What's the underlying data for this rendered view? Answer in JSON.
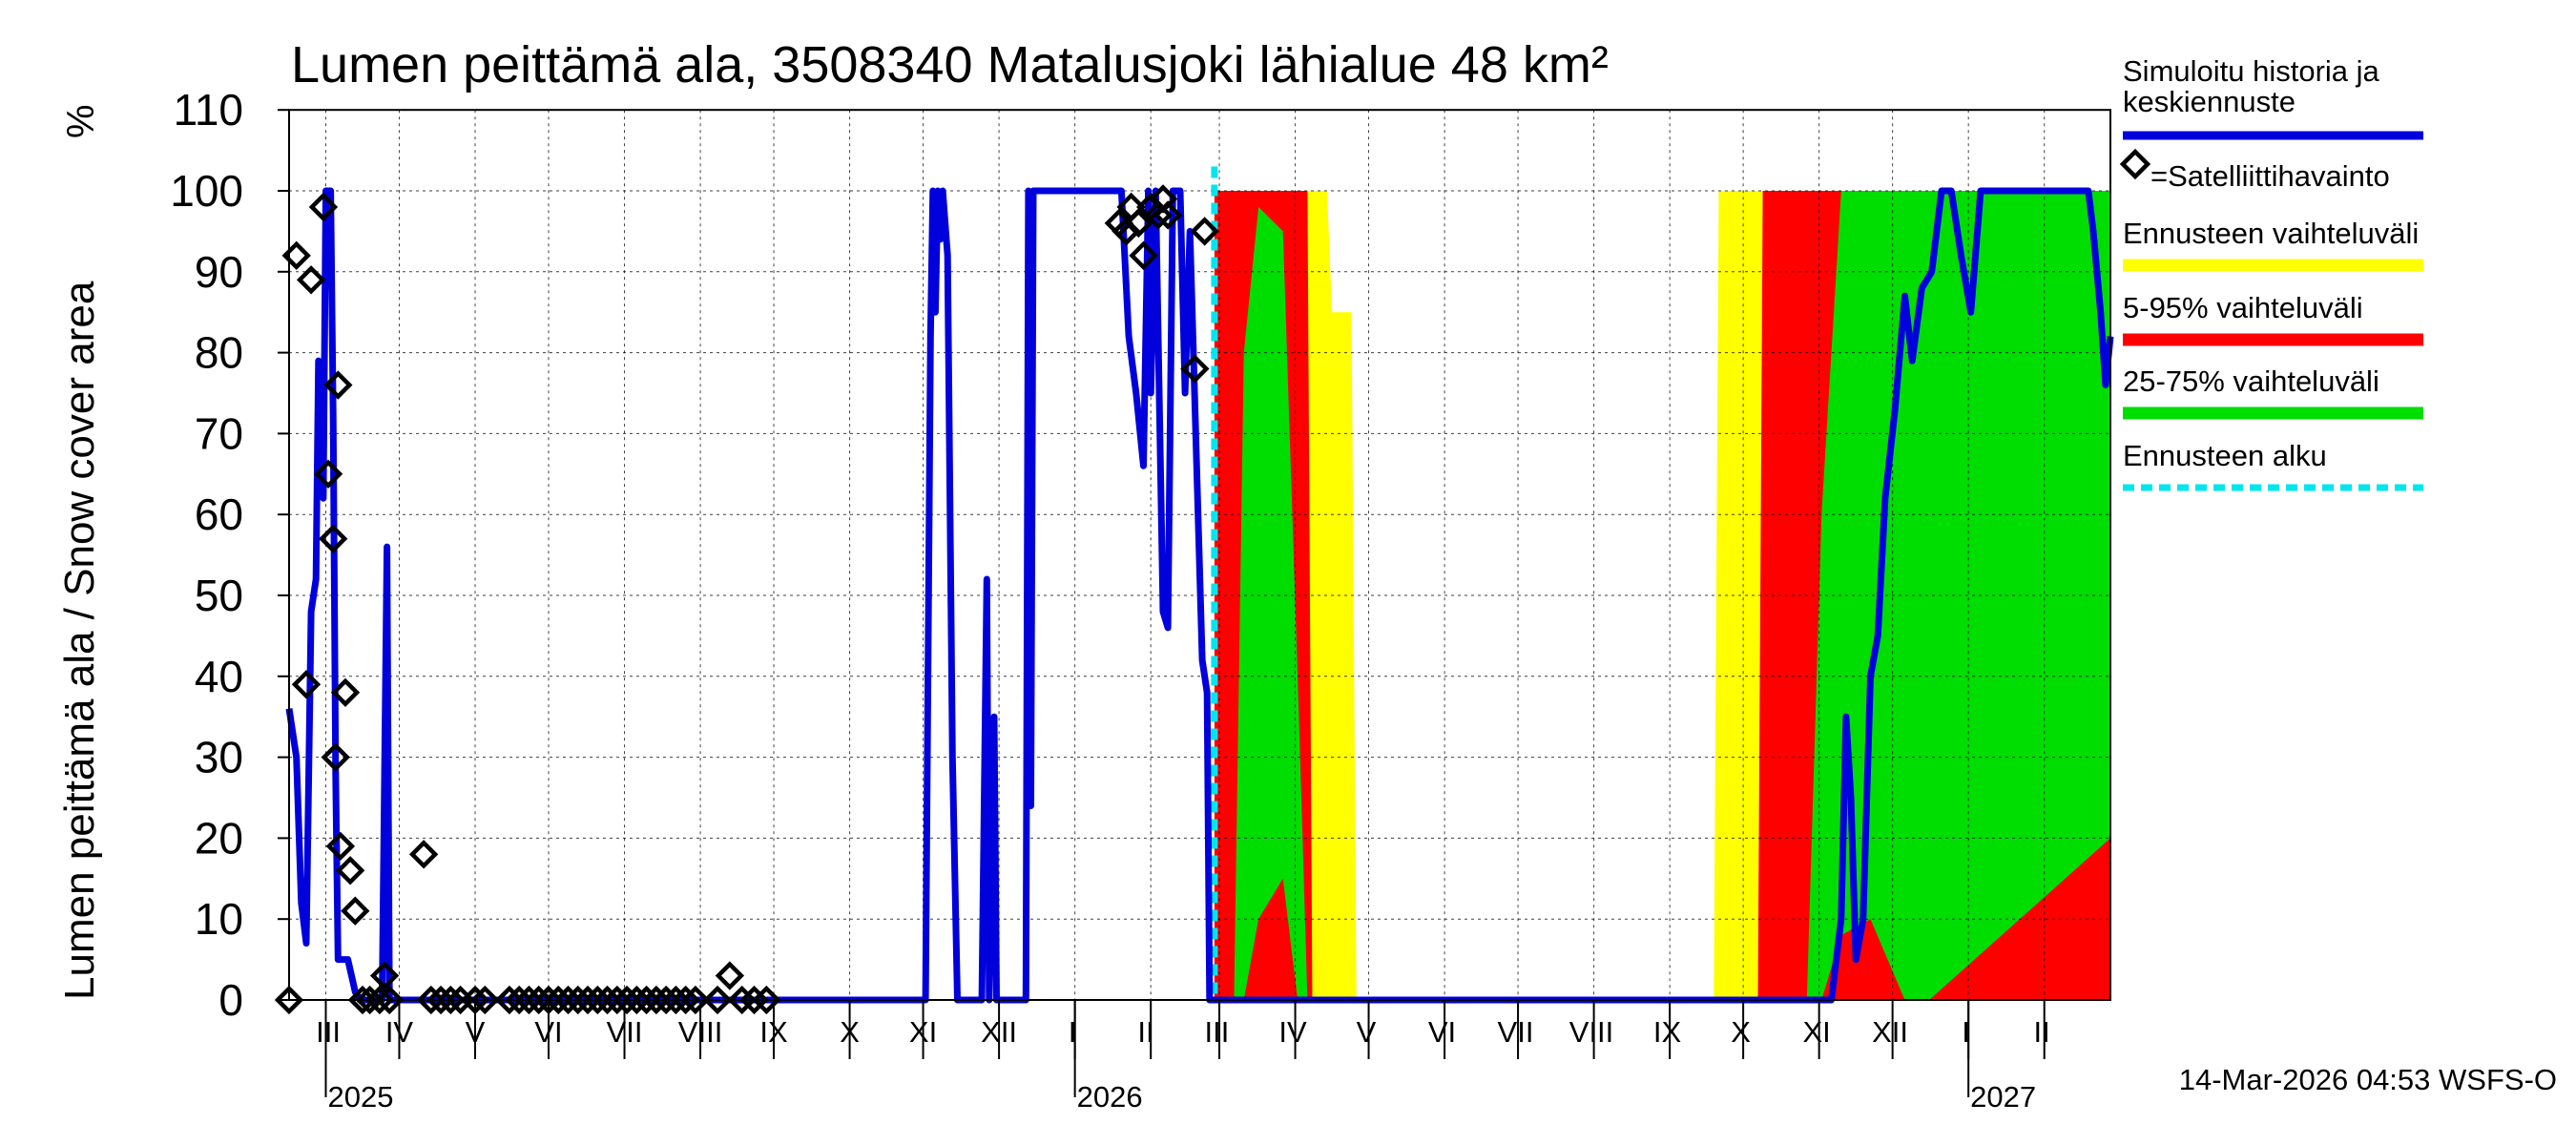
{
  "chart_data": {
    "type": "area",
    "title": "Lumen peittämä ala, 3508340 Matalusjoki lähialue 48 km²",
    "ylabel": "Lumen peittämä ala / Snow cover area",
    "yunit": "%",
    "ylim": [
      0,
      110
    ],
    "yticks": [
      0,
      10,
      20,
      30,
      40,
      50,
      60,
      70,
      80,
      90,
      100,
      110
    ],
    "xlim_days": [
      0,
      744
    ],
    "x_unit": "days since 2025-02-14",
    "month_labels": [
      "III",
      "IV",
      "V",
      "VI",
      "VII",
      "VIII",
      "IX",
      "X",
      "XI",
      "XII",
      "I",
      "II",
      "III",
      "IV",
      "V",
      "VI",
      "VII",
      "VIII",
      "IX",
      "X",
      "XI",
      "XII",
      "I",
      "II"
    ],
    "month_label_days": [
      16,
      45,
      76,
      106,
      137,
      168,
      198,
      229,
      259,
      290,
      320,
      350,
      379,
      410,
      440,
      471,
      501,
      532,
      563,
      593,
      624,
      654,
      685,
      716
    ],
    "month_boundary_days": [
      15,
      45,
      76,
      106,
      137,
      168,
      198,
      229,
      259,
      290,
      321,
      352,
      380,
      411,
      441,
      472,
      502,
      533,
      564,
      594,
      625,
      655,
      686,
      717
    ],
    "year_labels": [
      {
        "label": "2025",
        "day": 15
      },
      {
        "label": "2026",
        "day": 321
      },
      {
        "label": "2027",
        "day": 686
      }
    ],
    "forecast_start_day": 378,
    "series": [
      {
        "name": "Simuloitu historia ja keskiennuste",
        "color": "#0000dd",
        "points": [
          [
            0,
            36
          ],
          [
            3,
            30
          ],
          [
            5,
            12
          ],
          [
            7,
            7
          ],
          [
            9,
            48
          ],
          [
            11,
            52
          ],
          [
            12,
            79
          ],
          [
            14,
            62
          ],
          [
            15,
            100
          ],
          [
            17,
            100
          ],
          [
            18,
            72
          ],
          [
            19,
            28
          ],
          [
            20,
            5
          ],
          [
            24,
            5
          ],
          [
            27,
            1
          ],
          [
            29,
            0
          ],
          [
            34,
            0
          ],
          [
            38,
            0
          ],
          [
            40,
            56
          ],
          [
            41,
            0
          ],
          [
            45,
            0
          ],
          [
            72,
            0
          ],
          [
            200,
            0
          ],
          [
            260,
            0
          ],
          [
            262,
            82
          ],
          [
            263,
            100
          ],
          [
            264,
            85
          ],
          [
            265,
            100
          ],
          [
            266,
            94
          ],
          [
            267,
            100
          ],
          [
            269,
            92
          ],
          [
            271,
            30
          ],
          [
            273,
            0
          ],
          [
            283,
            0
          ],
          [
            285,
            52
          ],
          [
            286,
            0
          ],
          [
            288,
            35
          ],
          [
            289,
            0
          ],
          [
            301,
            0
          ],
          [
            302,
            100
          ],
          [
            303,
            24
          ],
          [
            304,
            100
          ],
          [
            340,
            100
          ],
          [
            343,
            82
          ],
          [
            346,
            75
          ],
          [
            349,
            66
          ],
          [
            351,
            100
          ],
          [
            352,
            75
          ],
          [
            354,
            100
          ],
          [
            357,
            48
          ],
          [
            359,
            46
          ],
          [
            361,
            100
          ],
          [
            364,
            100
          ],
          [
            366,
            75
          ],
          [
            368,
            95
          ],
          [
            373,
            42
          ],
          [
            375,
            38
          ],
          [
            376,
            0
          ],
          [
            630,
            0
          ],
          [
            634,
            10
          ],
          [
            636,
            35
          ],
          [
            638,
            25
          ],
          [
            640,
            5
          ],
          [
            643,
            10
          ],
          [
            646,
            40
          ],
          [
            649,
            45
          ],
          [
            652,
            62
          ],
          [
            656,
            73
          ],
          [
            660,
            87
          ],
          [
            663,
            79
          ],
          [
            667,
            88
          ],
          [
            671,
            90
          ],
          [
            675,
            100
          ],
          [
            679,
            100
          ],
          [
            683,
            92
          ],
          [
            687,
            85
          ],
          [
            691,
            100
          ],
          [
            700,
            100
          ],
          [
            735,
            100
          ],
          [
            737,
            95
          ],
          [
            740,
            85
          ],
          [
            742,
            76
          ],
          [
            744,
            82
          ]
        ]
      },
      {
        "name": "Satelliittihavainto",
        "marker": "diamond",
        "points": [
          [
            0,
            0
          ],
          [
            3,
            92
          ],
          [
            7,
            39
          ],
          [
            9,
            89
          ],
          [
            14,
            98
          ],
          [
            16,
            65
          ],
          [
            18,
            57
          ],
          [
            19,
            30
          ],
          [
            20,
            76
          ],
          [
            21,
            19
          ],
          [
            23,
            38
          ],
          [
            25,
            16
          ],
          [
            27,
            11
          ],
          [
            30,
            0
          ],
          [
            33,
            0
          ],
          [
            37,
            0
          ],
          [
            39,
            3
          ],
          [
            41,
            0
          ],
          [
            55,
            18
          ],
          [
            58,
            0
          ],
          [
            62,
            0
          ],
          [
            66,
            0
          ],
          [
            70,
            0
          ],
          [
            76,
            0
          ],
          [
            80,
            0
          ],
          [
            90,
            0
          ],
          [
            94,
            0
          ],
          [
            98,
            0
          ],
          [
            102,
            0
          ],
          [
            106,
            0
          ],
          [
            110,
            0
          ],
          [
            114,
            0
          ],
          [
            118,
            0
          ],
          [
            122,
            0
          ],
          [
            126,
            0
          ],
          [
            130,
            0
          ],
          [
            134,
            0
          ],
          [
            138,
            0
          ],
          [
            142,
            0
          ],
          [
            146,
            0
          ],
          [
            150,
            0
          ],
          [
            154,
            0
          ],
          [
            158,
            0
          ],
          [
            162,
            0
          ],
          [
            166,
            0
          ],
          [
            175,
            0
          ],
          [
            180,
            3
          ],
          [
            185,
            0
          ],
          [
            190,
            0
          ],
          [
            195,
            0
          ],
          [
            339,
            96
          ],
          [
            342,
            95
          ],
          [
            344,
            98
          ],
          [
            347,
            96
          ],
          [
            349,
            92
          ],
          [
            352,
            98
          ],
          [
            355,
            97
          ],
          [
            357,
            99
          ],
          [
            359,
            97
          ],
          [
            370,
            78
          ],
          [
            374,
            95
          ]
        ]
      },
      {
        "name": "Ennusteen vaihteluväli",
        "color": "#ffff00",
        "band": [
          [
            378,
            0,
            100
          ],
          [
            424,
            0,
            100
          ],
          [
            426,
            0,
            85
          ],
          [
            434,
            0,
            85
          ],
          [
            436,
            0,
            0
          ],
          [
            582,
            0,
            0
          ],
          [
            584,
            0,
            100
          ],
          [
            744,
            0,
            100
          ]
        ]
      },
      {
        "name": "5-95% vaihteluväli",
        "color": "#ff0000",
        "band": [
          [
            378,
            0,
            100
          ],
          [
            416,
            0,
            100
          ],
          [
            418,
            0,
            0
          ],
          [
            600,
            0,
            0
          ],
          [
            602,
            0,
            100
          ],
          [
            744,
            0,
            100
          ]
        ]
      },
      {
        "name": "25-75% vaihteluväli",
        "color": "#00dd00",
        "band": [
          [
            378,
            0,
            0
          ],
          [
            386,
            0,
            0
          ],
          [
            390,
            0,
            80
          ],
          [
            396,
            10,
            98
          ],
          [
            406,
            15,
            95
          ],
          [
            412,
            0,
            40
          ],
          [
            416,
            0,
            0
          ],
          [
            620,
            0,
            0
          ],
          [
            626,
            0,
            60
          ],
          [
            634,
            8,
            100
          ],
          [
            646,
            10,
            100
          ],
          [
            660,
            0,
            100
          ],
          [
            670,
            0,
            100
          ],
          [
            744,
            20,
            100
          ]
        ]
      }
    ],
    "legend": {
      "hist_line1": "Simuloitu historia ja",
      "hist_line2": "keskiennuste",
      "sat": "=Satelliittihavainto",
      "range": "Ennusteen vaihteluväli",
      "p5_95": "5-95% vaihteluväli",
      "p25_75": "25-75% vaihteluväli",
      "start": "Ennusteen alku"
    },
    "forecast_start_color": "#00e5ee",
    "footer": "14-Mar-2026 04:53 WSFS-O"
  }
}
